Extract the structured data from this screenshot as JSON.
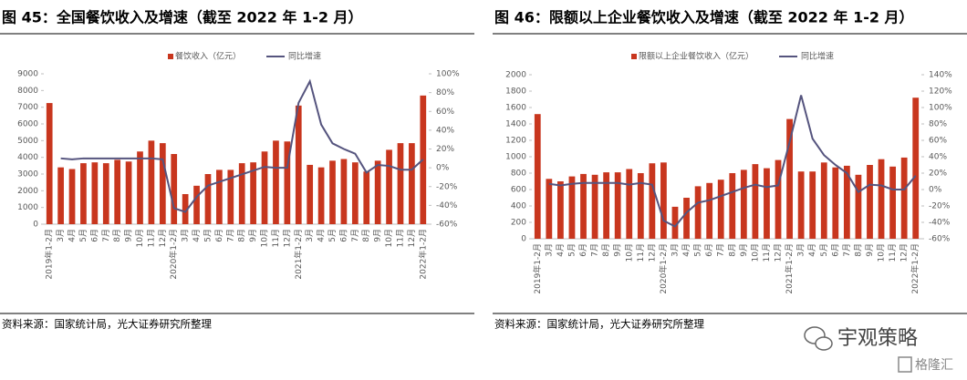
{
  "chart_data": [
    {
      "type": "bar",
      "title": "图 45：全国餐饮收入及增速（截至 2022 年 1-2 月）",
      "categories": [
        "2019年1-2月",
        "3月",
        "4月",
        "5月",
        "6月",
        "7月",
        "8月",
        "9月",
        "10月",
        "11月",
        "12月",
        "2020年1-2月",
        "3月",
        "4月",
        "5月",
        "6月",
        "7月",
        "8月",
        "9月",
        "10月",
        "11月",
        "12月",
        "2021年1-2月",
        "3月",
        "4月",
        "5月",
        "6月",
        "7月",
        "8月",
        "9月",
        "10月",
        "11月",
        "12月",
        "2022年1-2月"
      ],
      "series": [
        {
          "name": "餐饮收入（亿元）",
          "color": "#c8361e",
          "values": [
            7250,
            3400,
            3300,
            3650,
            3700,
            3650,
            3850,
            3750,
            4350,
            5000,
            4850,
            4200,
            1800,
            2300,
            3000,
            3250,
            3250,
            3650,
            3700,
            4350,
            5000,
            4950,
            7100,
            3550,
            3400,
            3800,
            3900,
            3700,
            3150,
            3800,
            4450,
            4850,
            4850,
            7700
          ]
        },
        {
          "name": "同比增速",
          "color": "#55547e",
          "type": "line",
          "axis": "y2",
          "values": [
            null,
            10,
            9,
            10,
            10,
            10,
            10,
            10,
            10,
            10,
            9,
            -43,
            -47,
            -31,
            -19,
            -15,
            -11,
            -7,
            -3,
            1,
            0,
            0,
            69,
            92,
            46,
            26,
            20,
            15,
            -5,
            3,
            2,
            -2,
            -2,
            9
          ]
        }
      ],
      "ylim": [
        0,
        9000
      ],
      "yticks": [
        0,
        1000,
        2000,
        3000,
        4000,
        5000,
        6000,
        7000,
        8000,
        9000
      ],
      "y2lim": [
        -60,
        100
      ],
      "y2ticks": [
        {
          "value": -60,
          "label": "-60%"
        },
        {
          "value": -40,
          "label": "-40%"
        },
        {
          "value": -20,
          "label": "-20%"
        },
        {
          "value": 0,
          "label": "0%"
        },
        {
          "value": 20,
          "label": "20%"
        },
        {
          "value": 40,
          "label": "40%"
        },
        {
          "value": 60,
          "label": "60%"
        },
        {
          "value": 80,
          "label": "80%"
        },
        {
          "value": 100,
          "label": "100%"
        }
      ],
      "source": "资料来源：国家统计局，光大证券研究所整理"
    },
    {
      "type": "bar",
      "title": "图 46：限额以上企业餐饮收入及增速（截至 2022 年 1-2 月）",
      "categories": [
        "2019年1-2月",
        "3月",
        "4月",
        "5月",
        "6月",
        "7月",
        "8月",
        "9月",
        "10月",
        "11月",
        "12月",
        "2020年1-2月",
        "3月",
        "4月",
        "5月",
        "6月",
        "7月",
        "8月",
        "9月",
        "10月",
        "11月",
        "12月",
        "2021年1-2月",
        "3月",
        "4月",
        "5月",
        "6月",
        "7月",
        "8月",
        "9月",
        "10月",
        "11月",
        "12月",
        "2022年1-2月"
      ],
      "series": [
        {
          "name": "限额以上企业餐饮收入（亿元）",
          "color": "#c8361e",
          "values": [
            1520,
            730,
            700,
            760,
            790,
            780,
            810,
            810,
            850,
            800,
            920,
            930,
            390,
            500,
            640,
            680,
            720,
            800,
            840,
            910,
            860,
            960,
            1460,
            820,
            820,
            930,
            870,
            890,
            780,
            900,
            970,
            880,
            990,
            1720
          ]
        },
        {
          "name": "同比增速",
          "color": "#55547e",
          "type": "line",
          "axis": "y2",
          "values": [
            null,
            7,
            5,
            7,
            8,
            8,
            8,
            8,
            6,
            8,
            6,
            -38,
            -45,
            -28,
            -16,
            -13,
            -8,
            -3,
            2,
            6,
            3,
            5,
            58,
            115,
            62,
            42,
            30,
            20,
            -3,
            6,
            5,
            0,
            0,
            17
          ]
        }
      ],
      "ylim": [
        0,
        2000
      ],
      "yticks": [
        0,
        200,
        400,
        600,
        800,
        1000,
        1200,
        1400,
        1600,
        1800,
        2000
      ],
      "y2lim": [
        -60,
        140
      ],
      "y2ticks": [
        {
          "value": -60,
          "label": "-60%"
        },
        {
          "value": -40,
          "label": "-40%"
        },
        {
          "value": -20,
          "label": "-20%"
        },
        {
          "value": 0,
          "label": "0%"
        },
        {
          "value": 20,
          "label": "20%"
        },
        {
          "value": 40,
          "label": "40%"
        },
        {
          "value": 60,
          "label": "60%"
        },
        {
          "value": 80,
          "label": "80%"
        },
        {
          "value": 100,
          "label": "100%"
        },
        {
          "value": 120,
          "label": "120%"
        },
        {
          "value": 140,
          "label": "140%"
        }
      ],
      "source": "资料来源：国家统计局，光大证券研究所整理"
    }
  ],
  "watermark": "宇观策略",
  "brand": "格隆汇"
}
